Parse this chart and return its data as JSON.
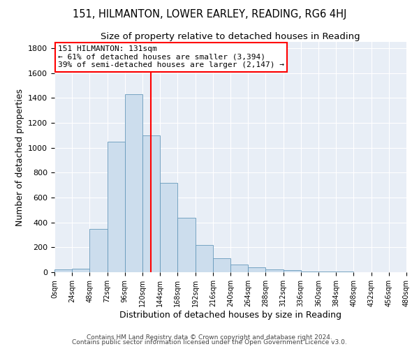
{
  "title": "151, HILMANTON, LOWER EARLEY, READING, RG6 4HJ",
  "subtitle": "Size of property relative to detached houses in Reading",
  "xlabel": "Distribution of detached houses by size in Reading",
  "ylabel": "Number of detached properties",
  "bar_color": "#ccdded",
  "bar_edge_color": "#6699bb",
  "background_color": "#e8eef6",
  "bin_width": 24,
  "bin_starts": [
    0,
    24,
    48,
    72,
    96,
    120,
    144,
    168,
    192,
    216,
    240,
    264,
    288,
    312,
    336,
    360,
    384,
    408,
    432,
    456
  ],
  "bar_heights": [
    20,
    30,
    350,
    1050,
    1430,
    1100,
    720,
    435,
    220,
    110,
    60,
    40,
    20,
    15,
    8,
    5,
    3,
    2,
    1,
    1
  ],
  "ylim": [
    0,
    1850
  ],
  "yticks": [
    0,
    200,
    400,
    600,
    800,
    1000,
    1200,
    1400,
    1600,
    1800
  ],
  "red_line_x": 131,
  "annotation_title": "151 HILMANTON: 131sqm",
  "annotation_line1": "← 61% of detached houses are smaller (3,394)",
  "annotation_line2": "39% of semi-detached houses are larger (2,147) →",
  "footnote1": "Contains HM Land Registry data © Crown copyright and database right 2024.",
  "footnote2": "Contains public sector information licensed under the Open Government Licence v3.0.",
  "tick_labels": [
    "0sqm",
    "24sqm",
    "48sqm",
    "72sqm",
    "96sqm",
    "120sqm",
    "144sqm",
    "168sqm",
    "192sqm",
    "216sqm",
    "240sqm",
    "264sqm",
    "288sqm",
    "312sqm",
    "336sqm",
    "360sqm",
    "384sqm",
    "408sqm",
    "432sqm",
    "456sqm",
    "480sqm"
  ]
}
